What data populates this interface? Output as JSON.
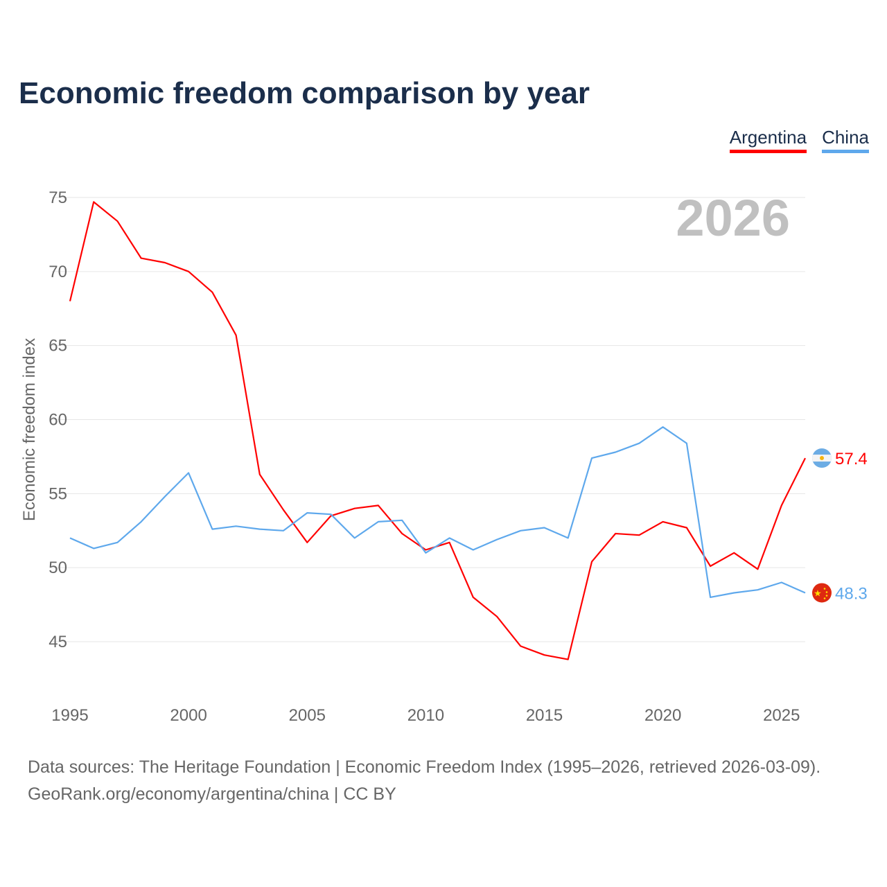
{
  "title": "Economic freedom comparison by year",
  "legend": [
    {
      "label": "Argentina",
      "color": "#ff0000"
    },
    {
      "label": "China",
      "color": "#5ea8ec"
    }
  ],
  "year_watermark": "2026",
  "source_lines": [
    "Data sources: The Heritage Foundation | Economic Freedom Index (1995–2026, retrieved 2026-03-09).",
    "GeoRank.org/economy/argentina/china | CC BY"
  ],
  "chart_data": {
    "type": "line",
    "title": "Economic freedom comparison by year",
    "xlabel": "",
    "ylabel": "Economic freedom index",
    "xlim": [
      1995,
      2026
    ],
    "ylim": [
      42,
      76
    ],
    "x_ticks": [
      "1995",
      "2000",
      "2005",
      "2010",
      "2015",
      "2020",
      "2025"
    ],
    "y_ticks": [
      "45",
      "50",
      "55",
      "60",
      "65",
      "70",
      "75"
    ],
    "grid": true,
    "legend_position": "top-right",
    "x": [
      1995,
      1996,
      1997,
      1998,
      1999,
      2000,
      2001,
      2002,
      2003,
      2004,
      2005,
      2006,
      2007,
      2008,
      2009,
      2010,
      2011,
      2012,
      2013,
      2014,
      2015,
      2016,
      2017,
      2018,
      2019,
      2020,
      2021,
      2022,
      2023,
      2024,
      2025,
      2026
    ],
    "series": [
      {
        "name": "Argentina",
        "color": "#ff0000",
        "end_label": "57.4",
        "values": [
          68.0,
          74.7,
          73.4,
          70.9,
          70.6,
          70.0,
          68.6,
          65.7,
          56.3,
          53.9,
          51.7,
          53.5,
          54.0,
          54.2,
          52.3,
          51.2,
          51.7,
          48.0,
          46.7,
          44.7,
          44.1,
          43.8,
          50.4,
          52.3,
          52.2,
          53.1,
          52.7,
          50.1,
          51.0,
          49.9,
          54.2,
          57.4
        ]
      },
      {
        "name": "China",
        "color": "#5ea8ec",
        "end_label": "48.3",
        "values": [
          52.0,
          51.3,
          51.7,
          53.1,
          54.8,
          56.4,
          52.6,
          52.8,
          52.6,
          52.5,
          53.7,
          53.6,
          52.0,
          53.1,
          53.2,
          51.0,
          52.0,
          51.2,
          51.9,
          52.5,
          52.7,
          52.0,
          57.4,
          57.8,
          58.4,
          59.5,
          58.4,
          48.0,
          48.3,
          48.5,
          49.0,
          48.3
        ]
      }
    ]
  }
}
